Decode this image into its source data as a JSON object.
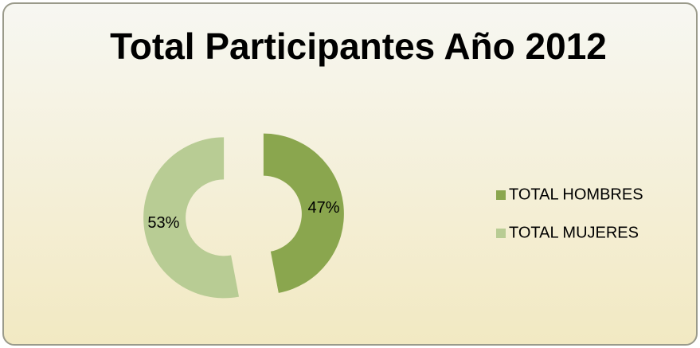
{
  "chart_data": {
    "type": "doughnut",
    "title": "Total Participantes Año 2012",
    "categories": [
      "TOTAL HOMBRES",
      "TOTAL MUJERES"
    ],
    "values": [
      47,
      53
    ],
    "value_labels": [
      "47%",
      "53%"
    ],
    "colors": [
      "#8aa64e",
      "#b8cc94"
    ],
    "legend": "right"
  }
}
